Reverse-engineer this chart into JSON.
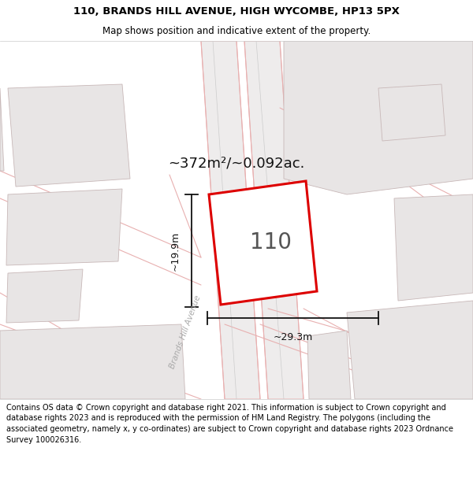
{
  "title_line1": "110, BRANDS HILL AVENUE, HIGH WYCOMBE, HP13 5PX",
  "title_line2": "Map shows position and indicative extent of the property.",
  "footer_lines": [
    "Contains OS data © Crown copyright and database right 2021. This information is subject to Crown copyright and database rights 2023 and is reproduced with the permission of",
    "HM Land Registry. The polygons (including the associated geometry, namely x, y co-ordinates) are subject to Crown copyright and database rights 2023 Ordnance Survey",
    "100026316."
  ],
  "area_text": "~372m²/~0.092ac.",
  "property_number": "110",
  "dim_width": "~29.3m",
  "dim_height": "~19.9m",
  "road_label": "Brands Hill Avenue",
  "map_bg": "#ffffff",
  "parcel_bg": "#f0eeee",
  "property_fill": "#ffffff",
  "property_edge": "#dd0000",
  "neighbor_fill": "#e8e5e5",
  "neighbor_edge": "#c8b8b8",
  "road_fill": "#ffffff",
  "road_outline_color": "#e8b0b0",
  "road_centerline_color": "#cccccc",
  "dim_line_color": "#111111",
  "area_text_color": "#111111",
  "num_color": "#555555",
  "title_fontsize": 9.5,
  "subtitle_fontsize": 8.5,
  "footer_fontsize": 7.0,
  "area_fontsize": 13,
  "num_fontsize": 20
}
